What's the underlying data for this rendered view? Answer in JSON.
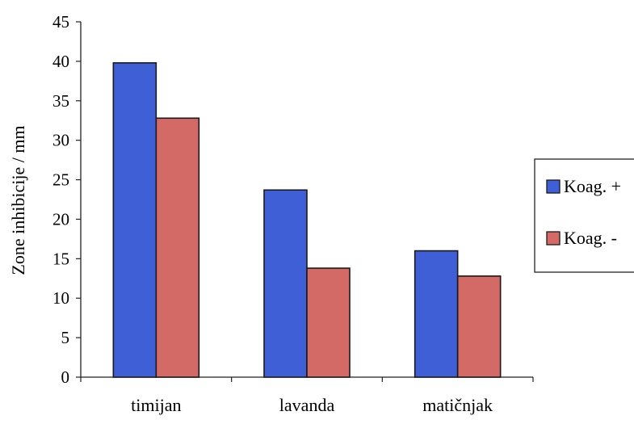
{
  "chart_data": {
    "type": "bar",
    "categories": [
      "timijan",
      "lavanda",
      "matičnjak"
    ],
    "series": [
      {
        "name": "Koag. +",
        "values": [
          39.8,
          23.7,
          16.0
        ],
        "color": "#3f5fd6"
      },
      {
        "name": "Koag. -",
        "values": [
          32.8,
          13.8,
          12.8
        ],
        "color": "#d46a66"
      }
    ],
    "title": "",
    "xlabel": "",
    "ylabel": "Zone inhibicije / mm",
    "ylim": [
      0,
      45
    ],
    "yticks": [
      0,
      5,
      10,
      15,
      20,
      25,
      30,
      35,
      40,
      45
    ],
    "grid": false,
    "legend_position": "right"
  }
}
